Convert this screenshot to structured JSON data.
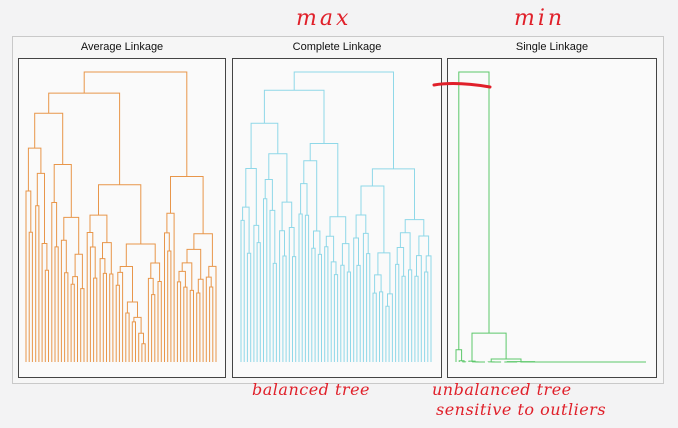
{
  "annotations": {
    "max": "max",
    "min": "min",
    "balanced": "balanced tree",
    "unbalanced_line1": "unbalanced tree",
    "unbalanced_line2": "sensitive to outliers"
  },
  "panels": [
    {
      "id": "average",
      "title": "Average Linkage",
      "color": "#e8964a"
    },
    {
      "id": "complete",
      "title": "Complete Linkage",
      "color": "#8fd8e8"
    },
    {
      "id": "single",
      "title": "Single Linkage",
      "color": "#5cc86a"
    }
  ],
  "colors": {
    "annotation": "#e0202a",
    "frame": "#444444"
  }
}
